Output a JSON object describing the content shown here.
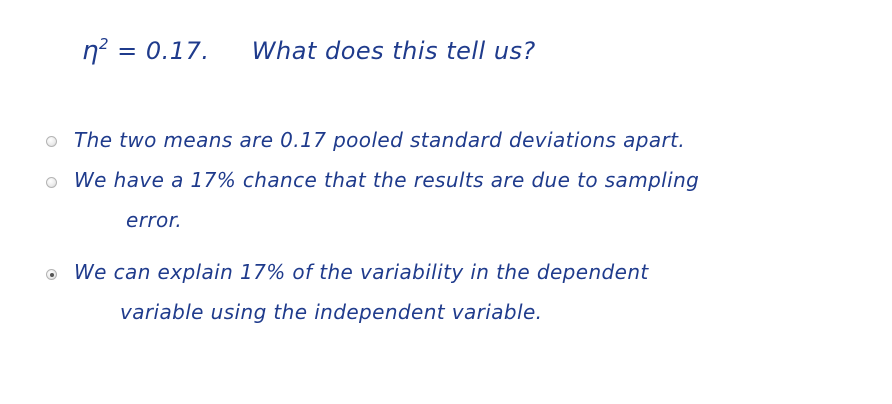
{
  "question": {
    "symbol": "η",
    "superscript": "2",
    "value_text": "= 0.17.",
    "prompt": "What does this tell us?"
  },
  "options": [
    {
      "selected": false,
      "lines": [
        "The two means are 0.17 pooled standard deviations apart."
      ]
    },
    {
      "selected": false,
      "lines": [
        "We have a 17% chance that the results are due to sampling",
        "error."
      ]
    },
    {
      "selected": true,
      "lines": [
        "We can explain 17% of the variability in the dependent",
        "variable using the independent variable."
      ]
    }
  ],
  "colors": {
    "ink": "#1f3b8c",
    "radio_border": "#b4b4b4",
    "radio_dot": "#555555"
  }
}
